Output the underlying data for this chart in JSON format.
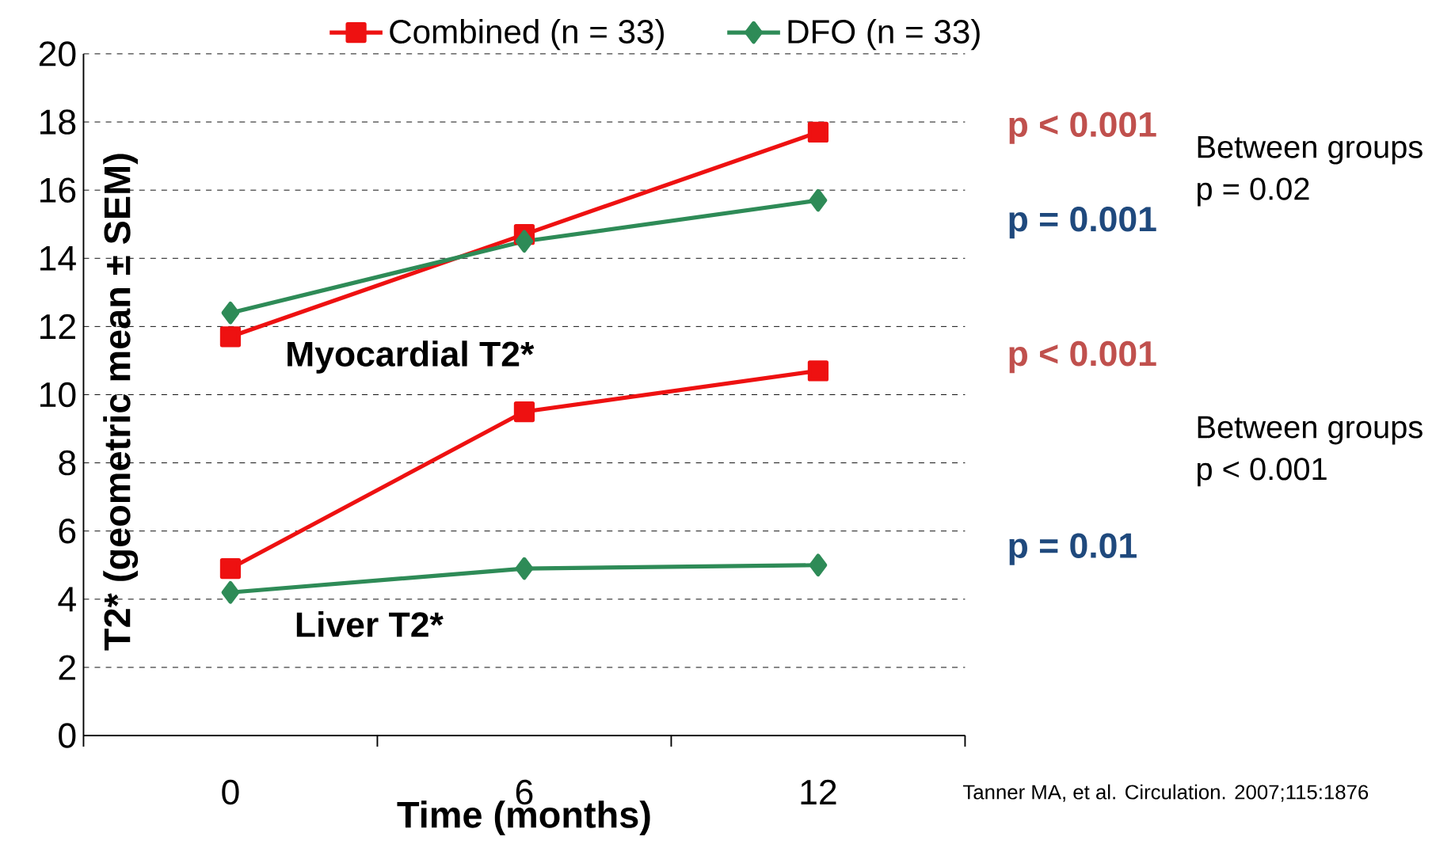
{
  "chart_data": {
    "type": "line",
    "xlabel": "Time (months)",
    "ylabel": "T2* (geometric mean ± SEM)",
    "categories": [
      "0",
      "6",
      "12"
    ],
    "series": [
      {
        "name": "Combined (n = 33)",
        "color": "#ee1111",
        "marker": "square",
        "values": [
          11.7,
          14.7,
          17.7
        ]
      },
      {
        "name": "DFO (n = 33)",
        "color": "#2e8b57",
        "marker": "diamond",
        "values": [
          12.4,
          14.5,
          15.7
        ]
      },
      {
        "color": "#ee1111",
        "marker": "square",
        "values": [
          4.9,
          9.5,
          10.7
        ]
      },
      {
        "color": "#2e8b57",
        "marker": "diamond",
        "values": [
          4.2,
          4.9,
          5.0
        ]
      }
    ],
    "ylim": [
      0,
      20
    ],
    "yticks": [
      0,
      2,
      4,
      6,
      8,
      10,
      12,
      14,
      16,
      18,
      20
    ],
    "grid": "y",
    "legend": "top",
    "line_style": "solid",
    "annotations": [
      "Myocardial T2*",
      "Liver T2*",
      "p < 0.001",
      "p = 0.001",
      "p < 0.001",
      "p = 0.01",
      "Between groups",
      "p = 0.02",
      "Between groups",
      "p < 0.001",
      "Tanner MA, et al. Circulation. 2007;115:1876"
    ]
  }
}
